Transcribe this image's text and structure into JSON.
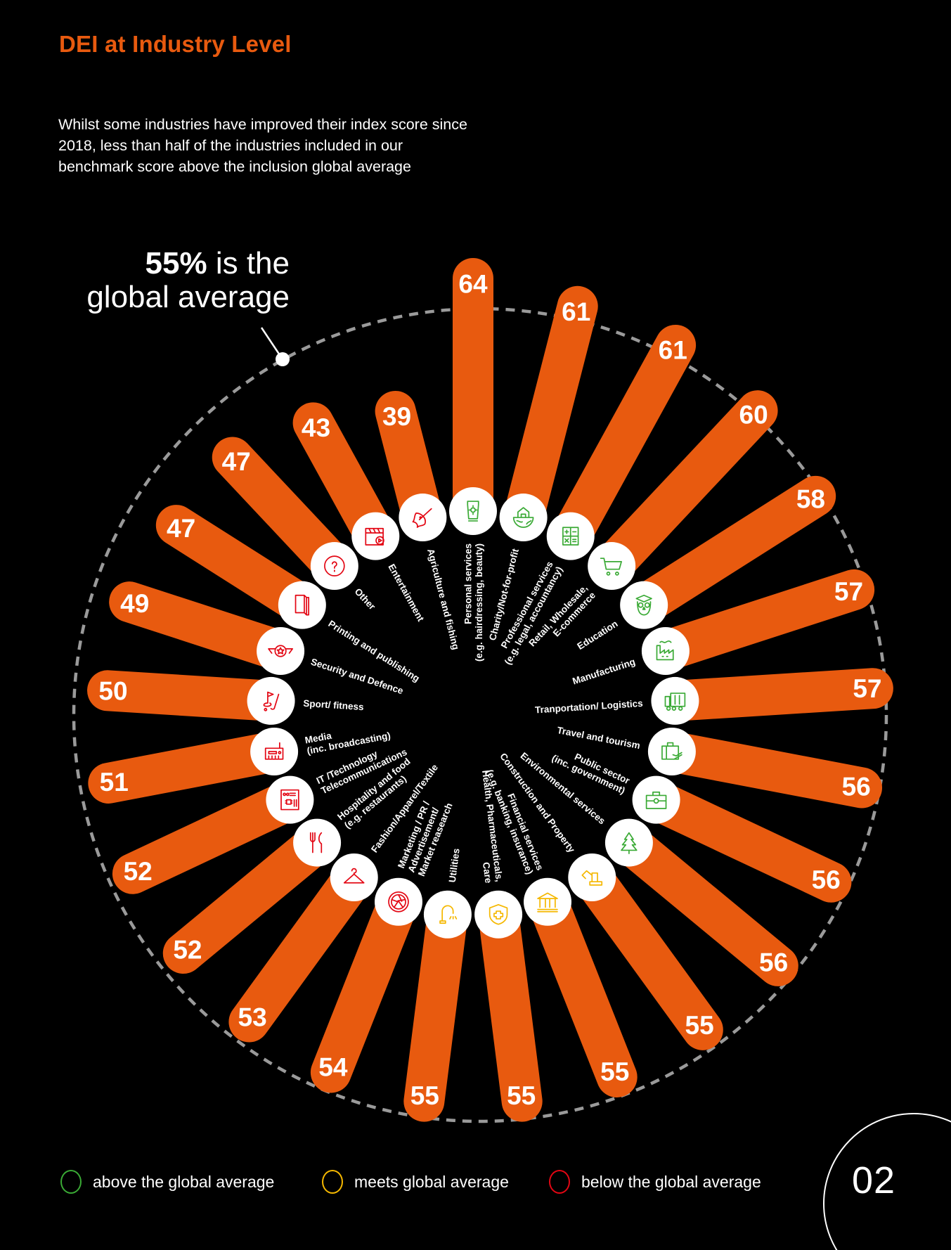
{
  "header": {
    "title": "DEI at Industry Level",
    "intro": "Whilst some industries have improved their index score since 2018, less than half of the industries included in our benchmark score above the inclusion global average"
  },
  "colors": {
    "background": "#000000",
    "bar": "#e85a0f",
    "title": "#e85a0f",
    "above": "#3aaa35",
    "meets": "#f5b800",
    "below": "#e30613",
    "reference_circle": "#9a9a9a"
  },
  "chart_data": {
    "type": "radial-bar",
    "reference": {
      "value": 55,
      "label_bold": "55%",
      "label_rest": " is the",
      "label_line2": "global average",
      "style": "dashed circle"
    },
    "categories": [
      {
        "label": [
          "Personal services",
          "(e.g. hairdressing, beauty)"
        ],
        "value": 64,
        "status": "above",
        "icon": "sunscreen-tube-icon"
      },
      {
        "label": [
          "Charity/Not-for-profit"
        ],
        "value": 61,
        "status": "above",
        "icon": "house-globe-icon"
      },
      {
        "label": [
          "Professional services",
          "(e.g. legal, accountancy)"
        ],
        "value": 61,
        "status": "above",
        "icon": "calculator-icon"
      },
      {
        "label": [
          "Retail, Wholesale,",
          "E-commerce"
        ],
        "value": 60,
        "status": "above",
        "icon": "shopping-cart-icon"
      },
      {
        "label": [
          "Education"
        ],
        "value": 58,
        "status": "above",
        "icon": "owl-graduate-icon"
      },
      {
        "label": [
          "Manufacturing"
        ],
        "value": 57,
        "status": "above",
        "icon": "factory-icon"
      },
      {
        "label": [
          "Tranportation/ Logistics"
        ],
        "value": 57,
        "status": "above",
        "icon": "truck-icon"
      },
      {
        "label": [
          "Travel and tourism"
        ],
        "value": 56,
        "status": "above",
        "icon": "luggage-plane-icon"
      },
      {
        "label": [
          "Public sector",
          "(inc. government)"
        ],
        "value": 56,
        "status": "above",
        "icon": "briefcase-icon"
      },
      {
        "label": [
          "Environmental services"
        ],
        "value": 56,
        "status": "above",
        "icon": "tree-icon"
      },
      {
        "label": [
          "Construction and Property"
        ],
        "value": 55,
        "status": "meets",
        "icon": "excavator-icon"
      },
      {
        "label": [
          "Financial services",
          "(e.g. banking, insurance)"
        ],
        "value": 55,
        "status": "meets",
        "icon": "bank-icon"
      },
      {
        "label": [
          "Health, Pharmaceuticals,",
          "Care"
        ],
        "value": 55,
        "status": "meets",
        "icon": "shield-cross-icon"
      },
      {
        "label": [
          "Utilities"
        ],
        "value": 55,
        "status": "meets",
        "icon": "water-tap-icon"
      },
      {
        "label": [
          "Marketing / PR /",
          "Advertisement/",
          "Market  reasearch"
        ],
        "value": 54,
        "status": "below",
        "icon": "camera-aperture-icon"
      },
      {
        "label": [
          "Fashion/Apparel/Textile"
        ],
        "value": 53,
        "status": "below",
        "icon": "clothes-hanger-icon"
      },
      {
        "label": [
          "Hospitality and food",
          "(e.g. restaurants)"
        ],
        "value": 52,
        "status": "below",
        "icon": "fork-knife-icon"
      },
      {
        "label": [
          "IT /Technology",
          "Telecommunications"
        ],
        "value": 52,
        "status": "below",
        "icon": "circuit-board-icon"
      },
      {
        "label": [
          "Media",
          "(inc. broadcasting)"
        ],
        "value": 51,
        "status": "below",
        "icon": "radio-icon"
      },
      {
        "label": [
          "Sport/ fitness"
        ],
        "value": 50,
        "status": "below",
        "icon": "golf-icon"
      },
      {
        "label": [
          "Security and Defence"
        ],
        "value": 49,
        "status": "below",
        "icon": "winged-star-icon"
      },
      {
        "label": [
          "Printing and publishing"
        ],
        "value": 47,
        "status": "below",
        "icon": "book-icon"
      },
      {
        "label": [
          "Other"
        ],
        "value": 47,
        "status": "below",
        "icon": "question-flower-icon"
      },
      {
        "label": [
          "Entertainment"
        ],
        "value": 43,
        "status": "below",
        "icon": "clapperboard-icon"
      },
      {
        "label": [
          "Agriculture and fishing"
        ],
        "value": 39,
        "status": "below",
        "icon": "fish-icon"
      }
    ],
    "legend": [
      {
        "status": "above",
        "label": "above the global average"
      },
      {
        "status": "meets",
        "label": "meets global average"
      },
      {
        "status": "below",
        "label": "below the global average"
      }
    ]
  },
  "footer": {
    "page_number": "02"
  }
}
